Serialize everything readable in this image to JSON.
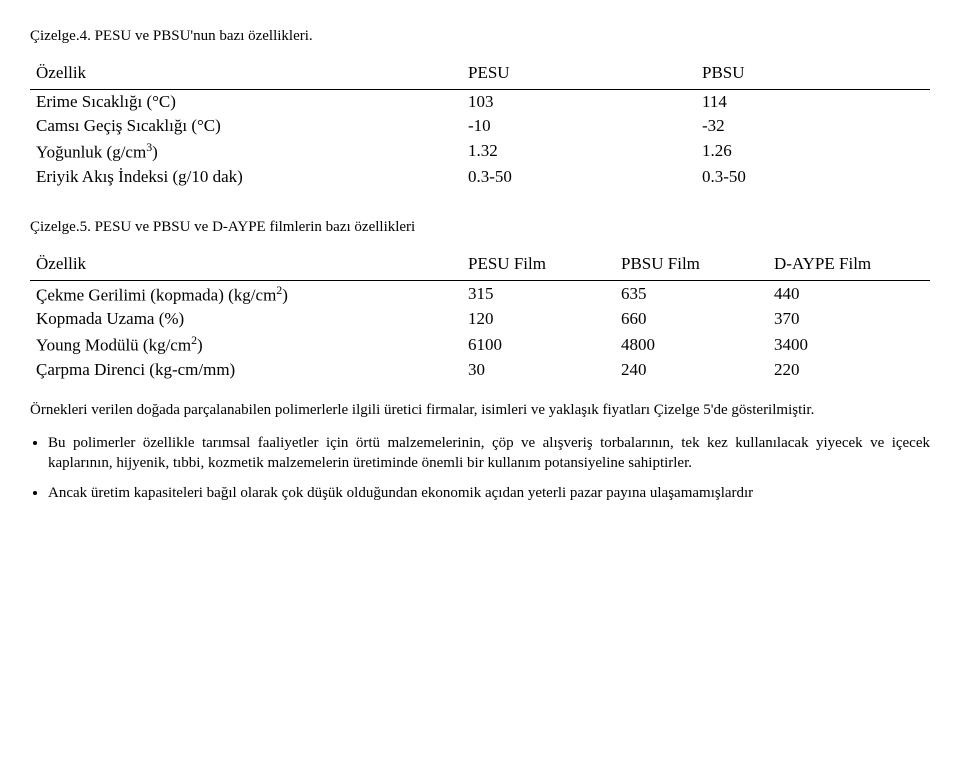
{
  "caption1": "Çizelge.4. PESU ve PBSU'nun bazı özellikleri.",
  "table1": {
    "headers": [
      "Özellik",
      "PESU",
      "PBSU"
    ],
    "rows": [
      {
        "prop": "Erime Sıcaklığı (°C)",
        "pesu": "103",
        "pbsu": "114"
      },
      {
        "prop": "Camsı Geçiş Sıcaklığı (°C)",
        "pesu": "-10",
        "pbsu": "-32"
      },
      {
        "prop_html": "Yoğunluk (g/cm<span class=\"sup\">3</span>)",
        "pesu": "1.32",
        "pbsu": "1.26"
      },
      {
        "prop": "Eriyik Akış İndeksi (g/10 dak)",
        "pesu": "0.3-50",
        "pbsu": "0.3-50"
      }
    ]
  },
  "caption2": "Çizelge.5. PESU ve PBSU ve D-AYPE filmlerin bazı özellikleri",
  "table2": {
    "headers": [
      "Özellik",
      "PESU Film",
      "PBSU Film",
      "D-AYPE Film"
    ],
    "rows": [
      {
        "prop_html": "Çekme Gerilimi (kopmada) (kg/cm<span class=\"sup\">2</span>)",
        "c1": "315",
        "c2": "635",
        "c3": "440"
      },
      {
        "prop": "Kopmada Uzama (%)",
        "c1": "120",
        "c2": "660",
        "c3": "370"
      },
      {
        "prop_html": "Young Modülü (kg/cm<span class=\"sup\">2</span>)",
        "c1": "6100",
        "c2": "4800",
        "c3": "3400"
      },
      {
        "prop": "Çarpma Direnci (kg-cm/mm)",
        "c1": "30",
        "c2": "240",
        "c3": "220"
      }
    ]
  },
  "paragraph": "Örnekleri verilen doğada parçalanabilen polimerlerle ilgili üretici firmalar, isimleri ve yaklaşık fiyatları Çizelge 5'de gösterilmiştir.",
  "bullet1": "Bu polimerler özellikle tarımsal faaliyetler için örtü malzemelerinin, çöp ve alışveriş torbalarının, tek kez kullanılacak yiyecek ve içecek kaplarının, hijyenik, tıbbi, kozmetik malzemelerin üretiminde önemli bir kullanım potansiyeline sahiptirler.",
  "bullet2": "Ancak üretim kapasiteleri bağıl olarak çok düşük olduğundan ekonomik açıdan yeterli pazar payına ulaşamamışlardır"
}
